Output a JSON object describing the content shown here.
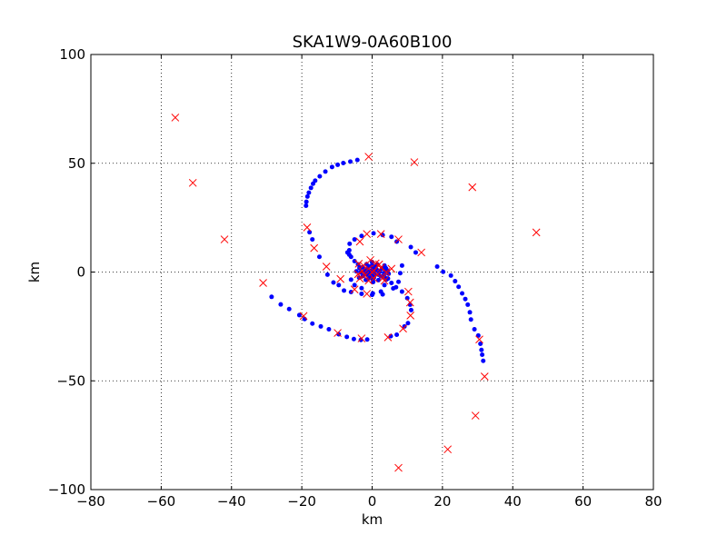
{
  "chart_data": {
    "type": "scatter",
    "title": "SKA1W9-0A60B100",
    "xlabel": "km",
    "ylabel": "km",
    "xlim": [
      -80,
      80
    ],
    "ylim": [
      -100,
      100
    ],
    "xticks": [
      -80,
      -60,
      -40,
      -20,
      0,
      20,
      40,
      60,
      80
    ],
    "yticks": [
      -100,
      -50,
      0,
      50,
      100
    ],
    "xtick_labels": [
      "−80",
      "−60",
      "−40",
      "−20",
      "0",
      "20",
      "40",
      "60",
      "80"
    ],
    "ytick_labels": [
      "−100",
      "−50",
      "0",
      "50",
      "100"
    ],
    "grid": true,
    "colors": {
      "dots": "#0000ff",
      "crosses": "#ff0000"
    },
    "series": [
      {
        "marker": "dot",
        "points": [
          [
            -4.2,
            51.5
          ],
          [
            -6.2,
            50.8
          ],
          [
            -8.2,
            50.1
          ],
          [
            -9.8,
            49.3
          ],
          [
            -11.4,
            48.3
          ],
          [
            -13.3,
            46.2
          ],
          [
            -14.9,
            44
          ],
          [
            -16.2,
            42
          ],
          [
            -16.8,
            40.6
          ],
          [
            -17.4,
            38.7
          ],
          [
            -18,
            36.5
          ],
          [
            -18.4,
            34.7
          ],
          [
            -18.7,
            32.3
          ],
          [
            -18.8,
            30.5
          ],
          [
            -1.4,
            -31
          ],
          [
            -3.2,
            -31.2
          ],
          [
            -5.2,
            -30.8
          ],
          [
            -7.2,
            -29.8
          ],
          [
            -9.5,
            -28.6
          ],
          [
            -12.3,
            -26.3
          ],
          [
            -14.6,
            -25
          ],
          [
            -17,
            -23.7
          ],
          [
            -19.2,
            -21.6
          ],
          [
            -20.7,
            -19.8
          ],
          [
            -23.6,
            -17
          ],
          [
            -26,
            -14.9
          ],
          [
            -28.6,
            -11.4
          ],
          [
            18.5,
            2.5
          ],
          [
            20.2,
            0.1
          ],
          [
            22.4,
            -1.6
          ],
          [
            23.6,
            -4.2
          ],
          [
            24.6,
            -6.8
          ],
          [
            25.6,
            -9.8
          ],
          [
            26.5,
            -12.4
          ],
          [
            27.2,
            -15
          ],
          [
            27.8,
            -18.5
          ],
          [
            28.1,
            -21.8
          ],
          [
            29.1,
            -26.3
          ],
          [
            30.2,
            -29.2
          ],
          [
            30.8,
            -33
          ],
          [
            31.1,
            -35.8
          ],
          [
            31.3,
            -38
          ],
          [
            31.6,
            -40.8
          ],
          [
            -17.8,
            18.3
          ],
          [
            -17,
            15
          ],
          [
            -15,
            7
          ],
          [
            -12.7,
            -1.2
          ],
          [
            -11,
            -4.8
          ],
          [
            -9.5,
            -6
          ],
          [
            -8,
            -8.5
          ],
          [
            -6,
            -9.2
          ],
          [
            -3,
            -10
          ],
          [
            0,
            -10.5
          ],
          [
            3,
            -10.3
          ],
          [
            6,
            -7.5
          ],
          [
            7.5,
            -4.5
          ],
          [
            8,
            -0.5
          ],
          [
            8.5,
            3
          ],
          [
            -6.4,
            13
          ],
          [
            -5,
            15
          ],
          [
            -3,
            16.6
          ],
          [
            0.4,
            17.8
          ],
          [
            3,
            17
          ],
          [
            5.5,
            16.2
          ],
          [
            7,
            14
          ],
          [
            11,
            11.5
          ],
          [
            12.4,
            9
          ],
          [
            -6,
            -3.5
          ],
          [
            -5,
            -6
          ],
          [
            -3,
            -7.4
          ],
          [
            0.2,
            -9.8
          ],
          [
            2.5,
            -9
          ],
          [
            3.5,
            -6
          ],
          [
            4.5,
            -3
          ],
          [
            4.7,
            -0.8
          ],
          [
            4,
            1.5
          ],
          [
            3.5,
            3
          ],
          [
            -6.5,
            10
          ],
          [
            -7,
            9
          ],
          [
            -6.5,
            8
          ],
          [
            -6,
            7
          ],
          [
            -5,
            5
          ],
          [
            -4,
            3.5
          ],
          [
            -3.2,
            2
          ],
          [
            -2,
            1
          ],
          [
            -1,
            0.2
          ],
          [
            5.3,
            -29.5
          ],
          [
            7,
            -28.8
          ],
          [
            9.2,
            -25
          ],
          [
            10.2,
            -23.5
          ],
          [
            11.1,
            -17.5
          ],
          [
            10.8,
            -15
          ],
          [
            10,
            -12
          ],
          [
            8.5,
            -9
          ],
          [
            6.8,
            -7
          ],
          [
            5.5,
            -5
          ],
          [
            4,
            -3.5
          ],
          [
            3,
            -2
          ],
          [
            0.5,
            0
          ],
          [
            -0.5,
            0.5
          ],
          [
            0.8,
            -1
          ],
          [
            -1,
            -0.8
          ],
          [
            1.5,
            0.8
          ],
          [
            -1.5,
            1.2
          ],
          [
            0.2,
            1.8
          ],
          [
            -0.3,
            -1.8
          ],
          [
            1.8,
            -1.2
          ],
          [
            -1.8,
            -0.3
          ],
          [
            2.2,
            0.2
          ],
          [
            -2.2,
            0.6
          ],
          [
            1,
            2.4
          ],
          [
            -1,
            2.6
          ],
          [
            0.5,
            -2.6
          ],
          [
            -0.8,
            -2.8
          ],
          [
            2.5,
            -2
          ],
          [
            -2.6,
            -1.8
          ],
          [
            2.8,
            1.6
          ],
          [
            -2.7,
            2.2
          ],
          [
            0,
            3.2
          ],
          [
            0.2,
            -3.4
          ],
          [
            3.4,
            -0.4
          ],
          [
            -3.3,
            -0.2
          ],
          [
            1.5,
            3.5
          ],
          [
            -1.6,
            3.6
          ],
          [
            1.8,
            -3.7
          ],
          [
            -1.8,
            -3.6
          ],
          [
            3.8,
            2
          ],
          [
            -3.6,
            1.8
          ],
          [
            3.6,
            -2.4
          ],
          [
            -3.7,
            -2.6
          ],
          [
            0,
            4.6
          ],
          [
            0.3,
            -4.6
          ],
          [
            4.4,
            0.6
          ],
          [
            -4.5,
            0.3
          ],
          [
            1.2,
            1.2
          ],
          [
            -1.2,
            -1.2
          ],
          [
            0.6,
            -0.6
          ],
          [
            -0.6,
            0.6
          ]
        ]
      },
      {
        "marker": "x",
        "points": [
          [
            -56,
            71
          ],
          [
            -51,
            41
          ],
          [
            -42,
            15
          ],
          [
            -31,
            -5
          ],
          [
            -1,
            53
          ],
          [
            12,
            50.5
          ],
          [
            28.5,
            39
          ],
          [
            46.7,
            18.2
          ],
          [
            -18.5,
            20.5
          ],
          [
            -16.5,
            11
          ],
          [
            -13,
            2.5
          ],
          [
            -9,
            -3.2
          ],
          [
            -5,
            -8
          ],
          [
            -1.5,
            -10
          ],
          [
            -3.5,
            14
          ],
          [
            -1.5,
            17.5
          ],
          [
            2.5,
            17.5
          ],
          [
            7.5,
            15
          ],
          [
            14,
            9
          ],
          [
            -19.5,
            -20.2
          ],
          [
            -9.8,
            -28
          ],
          [
            -3,
            -30.5
          ],
          [
            4.5,
            -30
          ],
          [
            8.8,
            -26
          ],
          [
            10.9,
            -20
          ],
          [
            10.8,
            -14
          ],
          [
            10.3,
            -9
          ],
          [
            30.5,
            -31
          ],
          [
            32,
            -48
          ],
          [
            29.4,
            -66
          ],
          [
            21.5,
            -81.5
          ],
          [
            7.5,
            -90
          ],
          [
            0.5,
            0.5
          ],
          [
            -1,
            1.5
          ],
          [
            1.5,
            -1
          ],
          [
            -2,
            -1.5
          ],
          [
            2.5,
            2
          ],
          [
            -2.8,
            0.5
          ],
          [
            0.5,
            -3
          ],
          [
            3.2,
            -2.5
          ],
          [
            -2.5,
            3
          ],
          [
            2,
            3.5
          ],
          [
            -3.5,
            -3
          ],
          [
            4,
            0
          ],
          [
            -4,
            -1
          ],
          [
            1,
            4
          ],
          [
            -1,
            -4
          ],
          [
            3.5,
            -4
          ],
          [
            -3.8,
            3.8
          ],
          [
            5.5,
            1.5
          ],
          [
            -0.5,
            5.5
          ],
          [
            0,
            0
          ]
        ]
      }
    ]
  }
}
